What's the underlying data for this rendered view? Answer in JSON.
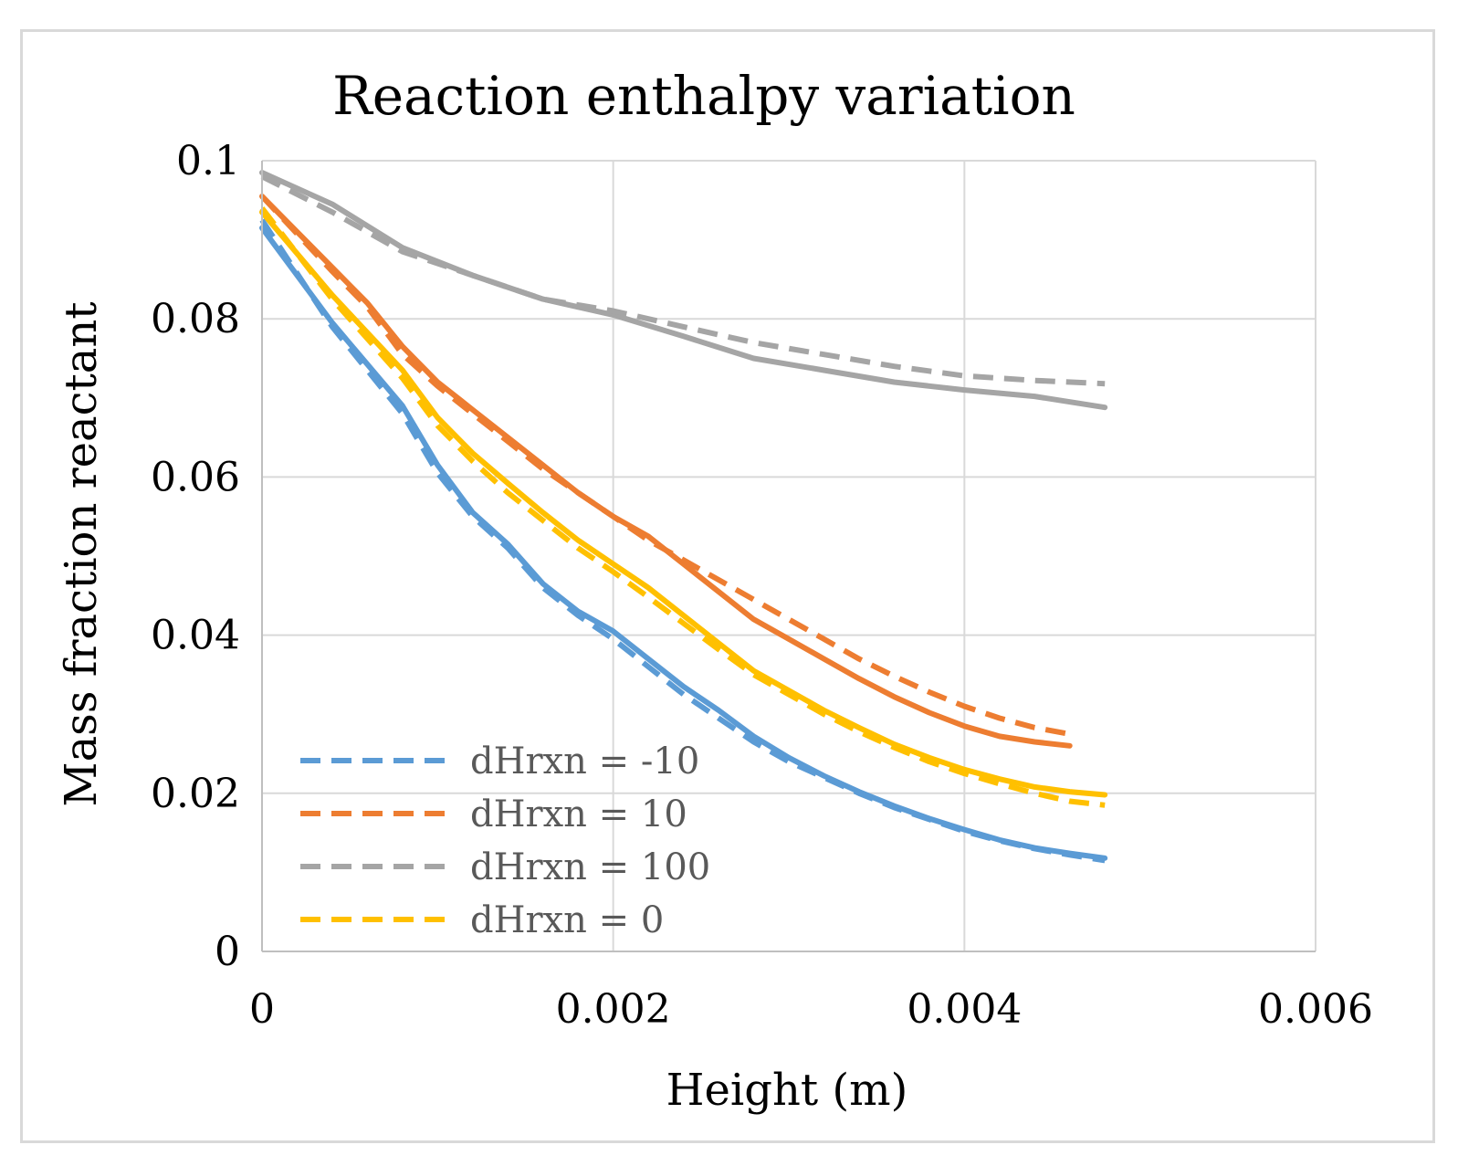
{
  "chart_data": {
    "type": "line",
    "title": "Reaction enthalpy variation",
    "xlabel": "Height (m)",
    "ylabel": "Mass fraction reactant",
    "xlim": [
      0,
      0.006
    ],
    "ylim": [
      0,
      0.1
    ],
    "x_ticks": [
      "0",
      "0.002",
      "0.004",
      "0.006"
    ],
    "y_ticks": [
      "0",
      "0.02",
      "0.04",
      "0.06",
      "0.08",
      "0.1"
    ],
    "grid": true,
    "legend_position": "bottom-left",
    "series": [
      {
        "name": "dHrxn = -10",
        "color": "#5B9BD5",
        "dashed": [
          [
            0,
            0.0925
          ],
          [
            0.0004,
            0.079
          ],
          [
            0.0008,
            0.068
          ],
          [
            0.001,
            0.0605
          ],
          [
            0.0012,
            0.055
          ],
          [
            0.0014,
            0.051
          ],
          [
            0.0016,
            0.046
          ],
          [
            0.0018,
            0.0425
          ],
          [
            0.002,
            0.0395
          ],
          [
            0.0022,
            0.036
          ],
          [
            0.0024,
            0.0325
          ],
          [
            0.0026,
            0.0295
          ],
          [
            0.0028,
            0.0265
          ],
          [
            0.003,
            0.024
          ],
          [
            0.0032,
            0.022
          ],
          [
            0.0034,
            0.02
          ],
          [
            0.0036,
            0.0182
          ],
          [
            0.0038,
            0.0167
          ],
          [
            0.004,
            0.0152
          ],
          [
            0.0042,
            0.014
          ],
          [
            0.0044,
            0.013
          ],
          [
            0.0046,
            0.0122
          ],
          [
            0.0048,
            0.0115
          ]
        ],
        "solid": [
          [
            0,
            0.0915
          ],
          [
            0.0004,
            0.0795
          ],
          [
            0.0008,
            0.069
          ],
          [
            0.001,
            0.0615
          ],
          [
            0.0012,
            0.0555
          ],
          [
            0.0014,
            0.0515
          ],
          [
            0.0016,
            0.0465
          ],
          [
            0.0018,
            0.043
          ],
          [
            0.002,
            0.0405
          ],
          [
            0.0022,
            0.037
          ],
          [
            0.0024,
            0.0335
          ],
          [
            0.0026,
            0.0305
          ],
          [
            0.0028,
            0.0272
          ],
          [
            0.003,
            0.0245
          ],
          [
            0.0032,
            0.0222
          ],
          [
            0.0034,
            0.0202
          ],
          [
            0.0036,
            0.0184
          ],
          [
            0.0038,
            0.0168
          ],
          [
            0.004,
            0.0154
          ],
          [
            0.0042,
            0.0141
          ],
          [
            0.0044,
            0.0131
          ],
          [
            0.0046,
            0.0124
          ],
          [
            0.0048,
            0.0118
          ]
        ]
      },
      {
        "name": "dHrxn = 10",
        "color": "#ED7D31",
        "dashed": [
          [
            0,
            0.0955
          ],
          [
            0.0004,
            0.086
          ],
          [
            0.0006,
            0.0815
          ],
          [
            0.0008,
            0.0755
          ],
          [
            0.001,
            0.0715
          ],
          [
            0.0012,
            0.068
          ],
          [
            0.0014,
            0.0645
          ],
          [
            0.0016,
            0.061
          ],
          [
            0.0018,
            0.058
          ],
          [
            0.002,
            0.055
          ],
          [
            0.0022,
            0.052
          ],
          [
            0.0024,
            0.0495
          ],
          [
            0.0026,
            0.047
          ],
          [
            0.0028,
            0.0445
          ],
          [
            0.003,
            0.042
          ],
          [
            0.0032,
            0.0395
          ],
          [
            0.0034,
            0.037
          ],
          [
            0.0036,
            0.0348
          ],
          [
            0.0038,
            0.0328
          ],
          [
            0.004,
            0.031
          ],
          [
            0.0042,
            0.0295
          ],
          [
            0.0044,
            0.0283
          ],
          [
            0.0046,
            0.0275
          ]
        ],
        "solid": [
          [
            0,
            0.0955
          ],
          [
            0.0004,
            0.0865
          ],
          [
            0.0006,
            0.082
          ],
          [
            0.0008,
            0.0765
          ],
          [
            0.001,
            0.072
          ],
          [
            0.0012,
            0.0685
          ],
          [
            0.0014,
            0.065
          ],
          [
            0.0016,
            0.0615
          ],
          [
            0.0018,
            0.058
          ],
          [
            0.002,
            0.055
          ],
          [
            0.0022,
            0.0525
          ],
          [
            0.0024,
            0.049
          ],
          [
            0.0026,
            0.0455
          ],
          [
            0.0028,
            0.042
          ],
          [
            0.003,
            0.0395
          ],
          [
            0.0032,
            0.037
          ],
          [
            0.0034,
            0.0345
          ],
          [
            0.0036,
            0.0322
          ],
          [
            0.0038,
            0.0302
          ],
          [
            0.004,
            0.0285
          ],
          [
            0.0042,
            0.0272
          ],
          [
            0.0044,
            0.0265
          ],
          [
            0.0046,
            0.026
          ]
        ]
      },
      {
        "name": "dHrxn = 100",
        "color": "#A5A5A5",
        "dashed": [
          [
            0,
            0.098
          ],
          [
            0.0004,
            0.0935
          ],
          [
            0.0008,
            0.0885
          ],
          [
            0.0012,
            0.0855
          ],
          [
            0.0016,
            0.0825
          ],
          [
            0.002,
            0.081
          ],
          [
            0.0024,
            0.079
          ],
          [
            0.0028,
            0.077
          ],
          [
            0.0032,
            0.0755
          ],
          [
            0.0036,
            0.074
          ],
          [
            0.004,
            0.0728
          ],
          [
            0.0044,
            0.0722
          ],
          [
            0.0048,
            0.0718
          ]
        ],
        "solid": [
          [
            0,
            0.0985
          ],
          [
            0.0004,
            0.0945
          ],
          [
            0.0008,
            0.089
          ],
          [
            0.0012,
            0.0855
          ],
          [
            0.0016,
            0.0825
          ],
          [
            0.002,
            0.0805
          ],
          [
            0.0024,
            0.0778
          ],
          [
            0.0028,
            0.075
          ],
          [
            0.0032,
            0.0735
          ],
          [
            0.0036,
            0.072
          ],
          [
            0.004,
            0.071
          ],
          [
            0.0044,
            0.0702
          ],
          [
            0.0048,
            0.0688
          ]
        ]
      },
      {
        "name": "dHrxn = 0",
        "color": "#FFC000",
        "dashed": [
          [
            0,
            0.094
          ],
          [
            0.0004,
            0.0825
          ],
          [
            0.0008,
            0.0725
          ],
          [
            0.001,
            0.0665
          ],
          [
            0.0012,
            0.062
          ],
          [
            0.0014,
            0.058
          ],
          [
            0.0016,
            0.0545
          ],
          [
            0.0018,
            0.051
          ],
          [
            0.002,
            0.048
          ],
          [
            0.0022,
            0.0448
          ],
          [
            0.0024,
            0.0415
          ],
          [
            0.0026,
            0.0382
          ],
          [
            0.0028,
            0.035
          ],
          [
            0.003,
            0.0325
          ],
          [
            0.0032,
            0.03
          ],
          [
            0.0034,
            0.0278
          ],
          [
            0.0036,
            0.0258
          ],
          [
            0.0038,
            0.024
          ],
          [
            0.004,
            0.0225
          ],
          [
            0.0042,
            0.0212
          ],
          [
            0.0044,
            0.02
          ],
          [
            0.0046,
            0.019
          ],
          [
            0.0048,
            0.0185
          ]
        ],
        "solid": [
          [
            0,
            0.0935
          ],
          [
            0.0004,
            0.083
          ],
          [
            0.0008,
            0.0735
          ],
          [
            0.001,
            0.0675
          ],
          [
            0.0012,
            0.063
          ],
          [
            0.0014,
            0.0592
          ],
          [
            0.0016,
            0.0555
          ],
          [
            0.0018,
            0.052
          ],
          [
            0.002,
            0.049
          ],
          [
            0.0022,
            0.046
          ],
          [
            0.0024,
            0.0425
          ],
          [
            0.0026,
            0.039
          ],
          [
            0.0028,
            0.0355
          ],
          [
            0.003,
            0.033
          ],
          [
            0.0032,
            0.0305
          ],
          [
            0.0034,
            0.0283
          ],
          [
            0.0036,
            0.0262
          ],
          [
            0.0038,
            0.0245
          ],
          [
            0.004,
            0.023
          ],
          [
            0.0042,
            0.0218
          ],
          [
            0.0044,
            0.0208
          ],
          [
            0.0046,
            0.0202
          ],
          [
            0.0048,
            0.0198
          ]
        ]
      }
    ]
  }
}
